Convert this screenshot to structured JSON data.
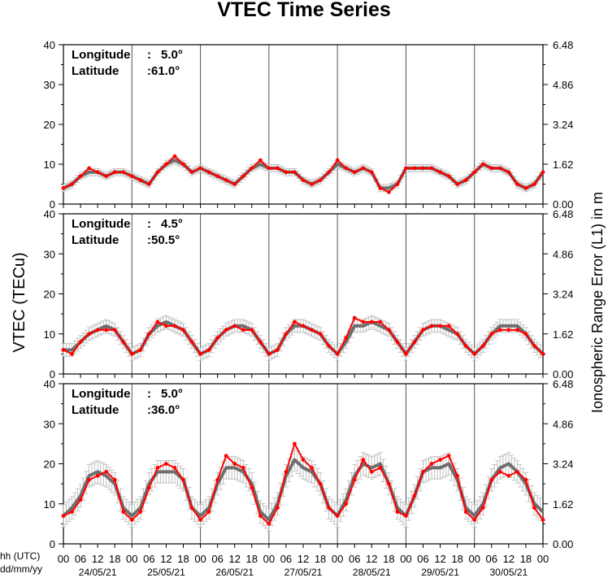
{
  "chart_data": {
    "type": "line",
    "title": "VTEC Time Series",
    "ylabel_left": "VTEC (TECu)",
    "ylabel_right": "Ionospheric Range Error (L1) in m",
    "left_ticks": [
      "0",
      "10",
      "20",
      "30",
      "40"
    ],
    "right_ticks": [
      "0.00",
      "1.62",
      "3.24",
      "4.86",
      "6.48"
    ],
    "ylim": [
      0,
      40
    ],
    "x_hour_ticks": [
      "00",
      "06",
      "12",
      "18"
    ],
    "x_final_hour": "00",
    "x_corner_label_hours": "hh (UTC)",
    "x_corner_label_dates": "dd/mm/yy",
    "days": [
      "24/05/21",
      "25/05/21",
      "26/05/21",
      "27/05/21",
      "28/05/21",
      "29/05/21",
      "30/05/21"
    ],
    "label_longitude": "Longitude",
    "label_latitude": "Latitude",
    "series_colors": {
      "measured": "#ff0000",
      "reference": "#6e6e6e",
      "error_bars": "#bdbdbd"
    },
    "panels": [
      {
        "longitude": "5.0°",
        "latitude": "61.0°",
        "hours": [
          0,
          3,
          6,
          9,
          12,
          15,
          18,
          21,
          24,
          27,
          30,
          33,
          36,
          39,
          42,
          45,
          48,
          51,
          54,
          57,
          60,
          63,
          66,
          69,
          72,
          75,
          78,
          81,
          84,
          87,
          90,
          93,
          96,
          99,
          102,
          105,
          108,
          111,
          114,
          117,
          120,
          123,
          126,
          129,
          132,
          135,
          138,
          141,
          144,
          147,
          150,
          153,
          156,
          159,
          162,
          165,
          168
        ],
        "measured": [
          4,
          5,
          7,
          9,
          8,
          7,
          8,
          8,
          7,
          6,
          5,
          8,
          10,
          12,
          10,
          8,
          9,
          8,
          7,
          6,
          5,
          7,
          9,
          11,
          9,
          9,
          8,
          8,
          6,
          5,
          6,
          8,
          11,
          9,
          8,
          9,
          8,
          4,
          3,
          5,
          9,
          9,
          9,
          9,
          8,
          7,
          5,
          6,
          8,
          10,
          9,
          9,
          8,
          5,
          4,
          5,
          8
        ],
        "reference": [
          4,
          5,
          7,
          8,
          8,
          7,
          8,
          8,
          7,
          6,
          5,
          8,
          10,
          11,
          10,
          8,
          9,
          8,
          7,
          6,
          5,
          7,
          9,
          10,
          9,
          9,
          8,
          8,
          6,
          5,
          6,
          8,
          10,
          9,
          8,
          9,
          8,
          4,
          4,
          5,
          9,
          9,
          9,
          9,
          8,
          7,
          5,
          6,
          8,
          10,
          9,
          9,
          8,
          5,
          4,
          5,
          8
        ]
      },
      {
        "longitude": "4.5°",
        "latitude": "50.5°",
        "hours": [
          0,
          3,
          6,
          9,
          12,
          15,
          18,
          21,
          24,
          27,
          30,
          33,
          36,
          39,
          42,
          45,
          48,
          51,
          54,
          57,
          60,
          63,
          66,
          69,
          72,
          75,
          78,
          81,
          84,
          87,
          90,
          93,
          96,
          99,
          102,
          105,
          108,
          111,
          114,
          117,
          120,
          123,
          126,
          129,
          132,
          135,
          138,
          141,
          144,
          147,
          150,
          153,
          156,
          159,
          162,
          165,
          168
        ],
        "measured": [
          6,
          5,
          8,
          10,
          11,
          11,
          11,
          8,
          5,
          6,
          10,
          13,
          12,
          12,
          11,
          8,
          5,
          6,
          9,
          11,
          12,
          11,
          11,
          8,
          5,
          6,
          10,
          13,
          12,
          11,
          10,
          7,
          5,
          9,
          14,
          13,
          13,
          13,
          11,
          8,
          5,
          8,
          11,
          12,
          12,
          12,
          10,
          7,
          5,
          7,
          10,
          11,
          11,
          11,
          10,
          7,
          5
        ],
        "reference": [
          6,
          6,
          8,
          10,
          11,
          12,
          11,
          8,
          5,
          6,
          10,
          12,
          13,
          12,
          11,
          8,
          5,
          6,
          9,
          11,
          12,
          12,
          11,
          8,
          5,
          6,
          10,
          12,
          12,
          11,
          10,
          7,
          5,
          8,
          12,
          12,
          13,
          12,
          11,
          8,
          5,
          8,
          11,
          12,
          12,
          11,
          10,
          7,
          5,
          7,
          10,
          12,
          12,
          12,
          10,
          7,
          5
        ]
      },
      {
        "longitude": "5.0°",
        "latitude": "36.0°",
        "hours": [
          0,
          3,
          6,
          9,
          12,
          15,
          18,
          21,
          24,
          27,
          30,
          33,
          36,
          39,
          42,
          45,
          48,
          51,
          54,
          57,
          60,
          63,
          66,
          69,
          72,
          75,
          78,
          81,
          84,
          87,
          90,
          93,
          96,
          99,
          102,
          105,
          108,
          111,
          114,
          117,
          120,
          123,
          126,
          129,
          132,
          135,
          138,
          141,
          144,
          147,
          150,
          153,
          156,
          159,
          162,
          165,
          168
        ],
        "measured": [
          7,
          8,
          11,
          16,
          17,
          18,
          16,
          8,
          6,
          8,
          14,
          19,
          20,
          19,
          16,
          9,
          6,
          8,
          16,
          22,
          20,
          19,
          14,
          7,
          5,
          9,
          18,
          25,
          21,
          19,
          15,
          9,
          7,
          10,
          16,
          21,
          18,
          19,
          15,
          8,
          7,
          12,
          18,
          20,
          21,
          22,
          17,
          8,
          6,
          9,
          16,
          18,
          17,
          18,
          16,
          9,
          6
        ],
        "reference": [
          7,
          9,
          12,
          17,
          18,
          17,
          15,
          9,
          7,
          9,
          15,
          18,
          18,
          18,
          16,
          9,
          7,
          9,
          15,
          19,
          19,
          18,
          15,
          8,
          6,
          10,
          17,
          21,
          19,
          18,
          15,
          9,
          7,
          11,
          17,
          20,
          19,
          20,
          15,
          9,
          7,
          12,
          18,
          19,
          19,
          20,
          16,
          9,
          7,
          10,
          16,
          19,
          20,
          18,
          15,
          10,
          8
        ]
      }
    ]
  }
}
